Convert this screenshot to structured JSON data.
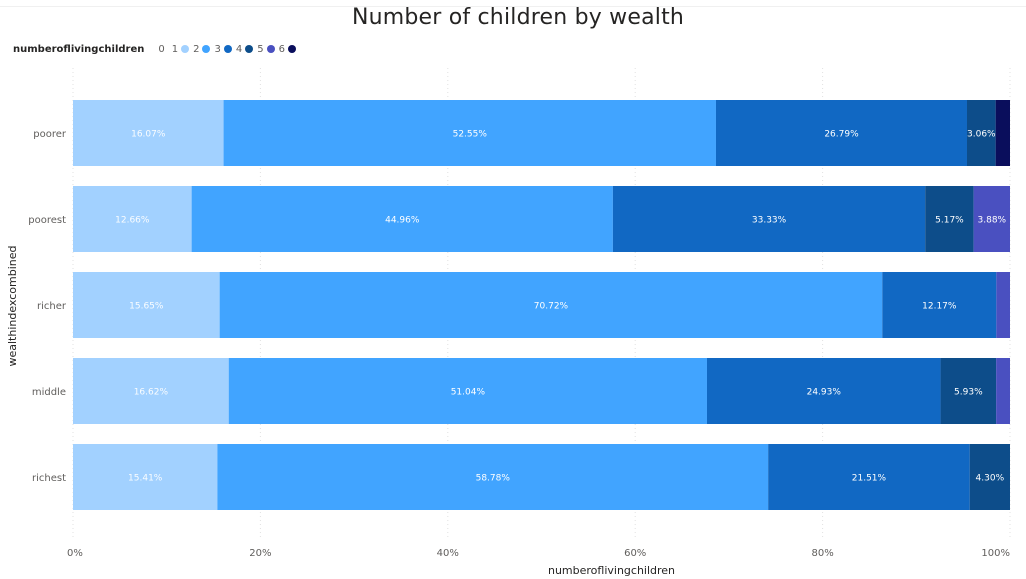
{
  "chart_data": {
    "type": "bar",
    "orientation": "horizontal",
    "stacked": "100%",
    "title": "Number of children by wealth",
    "xlabel": "numberoflivingchildren",
    "ylabel": "wealthindexcombined",
    "xlim": [
      0,
      100
    ],
    "x_ticks": [
      "0%",
      "20%",
      "40%",
      "60%",
      "80%",
      "100%"
    ],
    "grid": "vertical dotted",
    "legend_title": "numberoflivingchildren",
    "legend_position": "top-left",
    "categories": [
      "poorer",
      "poorest",
      "richer",
      "middle",
      "richest"
    ],
    "series": [
      {
        "name": "0",
        "color": "#ffffff",
        "values": [
          0,
          0,
          0,
          0,
          0
        ]
      },
      {
        "name": "1",
        "color": "#a2d1ff",
        "values": [
          16.07,
          12.66,
          15.65,
          16.62,
          15.41
        ]
      },
      {
        "name": "2",
        "color": "#41a4ff",
        "values": [
          52.55,
          44.96,
          70.72,
          51.04,
          58.78
        ]
      },
      {
        "name": "3",
        "color": "#1168c3",
        "values": [
          26.79,
          33.33,
          12.17,
          24.93,
          21.51
        ]
      },
      {
        "name": "4",
        "color": "#0d4d8a",
        "values": [
          3.06,
          5.17,
          0,
          5.93,
          4.3
        ]
      },
      {
        "name": "5",
        "color": "#4a50c0",
        "values": [
          0,
          3.88,
          1.46,
          1.48,
          0
        ]
      },
      {
        "name": "6",
        "color": "#0a0e5c",
        "values": [
          1.53,
          0,
          0,
          0,
          0
        ]
      }
    ],
    "data_labels": [
      [
        "16.07%",
        "52.55%",
        "26.79%",
        "3.06%"
      ],
      [
        "12.66%",
        "44.96%",
        "33.33%",
        "5.17%",
        "3.88%"
      ],
      [
        "15.65%",
        "70.72%",
        "12.17%"
      ],
      [
        "16.62%",
        "51.04%",
        "24.93%",
        "5.93%"
      ],
      [
        "15.41%",
        "58.78%",
        "21.51%",
        "4.30%"
      ]
    ]
  }
}
